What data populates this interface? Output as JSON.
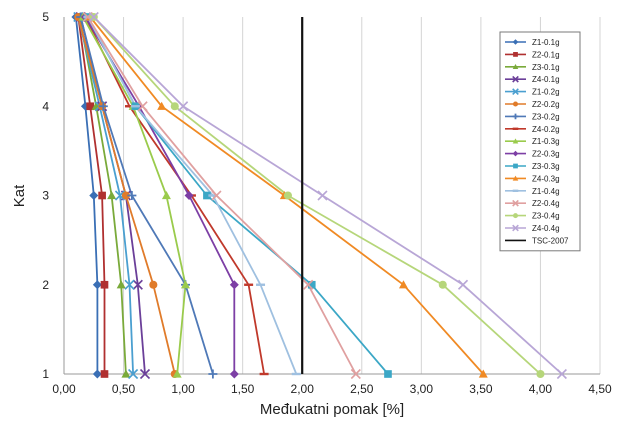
{
  "chart_data": {
    "type": "line",
    "orientation": "horizontal-profile",
    "xlabel": "Međukatni pomak [%]",
    "ylabel": "Kat",
    "xlim": [
      0,
      4.5
    ],
    "ylim": [
      1,
      5
    ],
    "x_ticks": [
      "0,00",
      "0,50",
      "1,00",
      "1,50",
      "2,00",
      "2,50",
      "3,00",
      "3,50",
      "4,00",
      "4,50"
    ],
    "y_ticks": [
      "1",
      "2",
      "3",
      "4",
      "5"
    ],
    "grid": "vertical",
    "legend_position": "right",
    "floors": [
      1,
      2,
      3,
      4,
      5
    ],
    "series": [
      {
        "name": "Z1-0.1g",
        "color": "#3a6fb5",
        "marker": "diamond",
        "values": [
          0.28,
          0.28,
          0.25,
          0.18,
          0.1
        ]
      },
      {
        "name": "Z2-0.1g",
        "color": "#b03030",
        "marker": "square",
        "values": [
          0.34,
          0.34,
          0.32,
          0.22,
          0.12
        ]
      },
      {
        "name": "Z3-0.1g",
        "color": "#7aaa3a",
        "marker": "triangle",
        "values": [
          0.52,
          0.48,
          0.4,
          0.27,
          0.13
        ]
      },
      {
        "name": "Z4-0.1g",
        "color": "#6b3f99",
        "marker": "x",
        "values": [
          0.68,
          0.62,
          0.52,
          0.32,
          0.14
        ]
      },
      {
        "name": "Z1-0.2g",
        "color": "#4a9fd0",
        "marker": "x",
        "values": [
          0.58,
          0.55,
          0.47,
          0.3,
          0.12
        ]
      },
      {
        "name": "Z2-0.2g",
        "color": "#e07b2a",
        "marker": "circle",
        "values": [
          0.93,
          0.75,
          0.52,
          0.32,
          0.12
        ]
      },
      {
        "name": "Z3-0.2g",
        "color": "#4f79b7",
        "marker": "plus",
        "values": [
          1.25,
          1.02,
          0.57,
          0.33,
          0.14
        ]
      },
      {
        "name": "Z4-0.2g",
        "color": "#c0392b",
        "marker": "dash",
        "values": [
          1.68,
          1.55,
          1.07,
          0.55,
          0.18
        ]
      },
      {
        "name": "Z1-0.3g",
        "color": "#9acb4c",
        "marker": "triangle",
        "values": [
          0.95,
          1.02,
          0.86,
          0.58,
          0.16
        ]
      },
      {
        "name": "Z2-0.3g",
        "color": "#7d3fa5",
        "marker": "diamond",
        "values": [
          1.43,
          1.43,
          1.05,
          0.63,
          0.18
        ]
      },
      {
        "name": "Z3-0.3g",
        "color": "#3ba7c6",
        "marker": "square",
        "values": [
          2.72,
          2.08,
          1.2,
          0.6,
          0.2
        ]
      },
      {
        "name": "Z4-0.3g",
        "color": "#f08a24",
        "marker": "triangle",
        "values": [
          3.52,
          2.85,
          1.85,
          0.82,
          0.22
        ]
      },
      {
        "name": "Z1-0.4g",
        "color": "#9fc0e0",
        "marker": "dash",
        "values": [
          1.95,
          1.65,
          1.25,
          0.6,
          0.2
        ]
      },
      {
        "name": "Z2-0.4g",
        "color": "#e0a0a0",
        "marker": "x",
        "values": [
          2.45,
          2.05,
          1.28,
          0.66,
          0.2
        ]
      },
      {
        "name": "Z3-0.4g",
        "color": "#b6d67a",
        "marker": "circle",
        "values": [
          4.0,
          3.18,
          1.88,
          0.93,
          0.25
        ]
      },
      {
        "name": "Z4-0.4g",
        "color": "#b8a6d6",
        "marker": "x",
        "values": [
          4.18,
          3.35,
          2.17,
          1.0,
          0.25
        ]
      },
      {
        "name": "TSC-2007",
        "color": "#111111",
        "marker": "none",
        "values": [
          2.0,
          2.0,
          2.0,
          2.0,
          2.0
        ]
      }
    ]
  }
}
